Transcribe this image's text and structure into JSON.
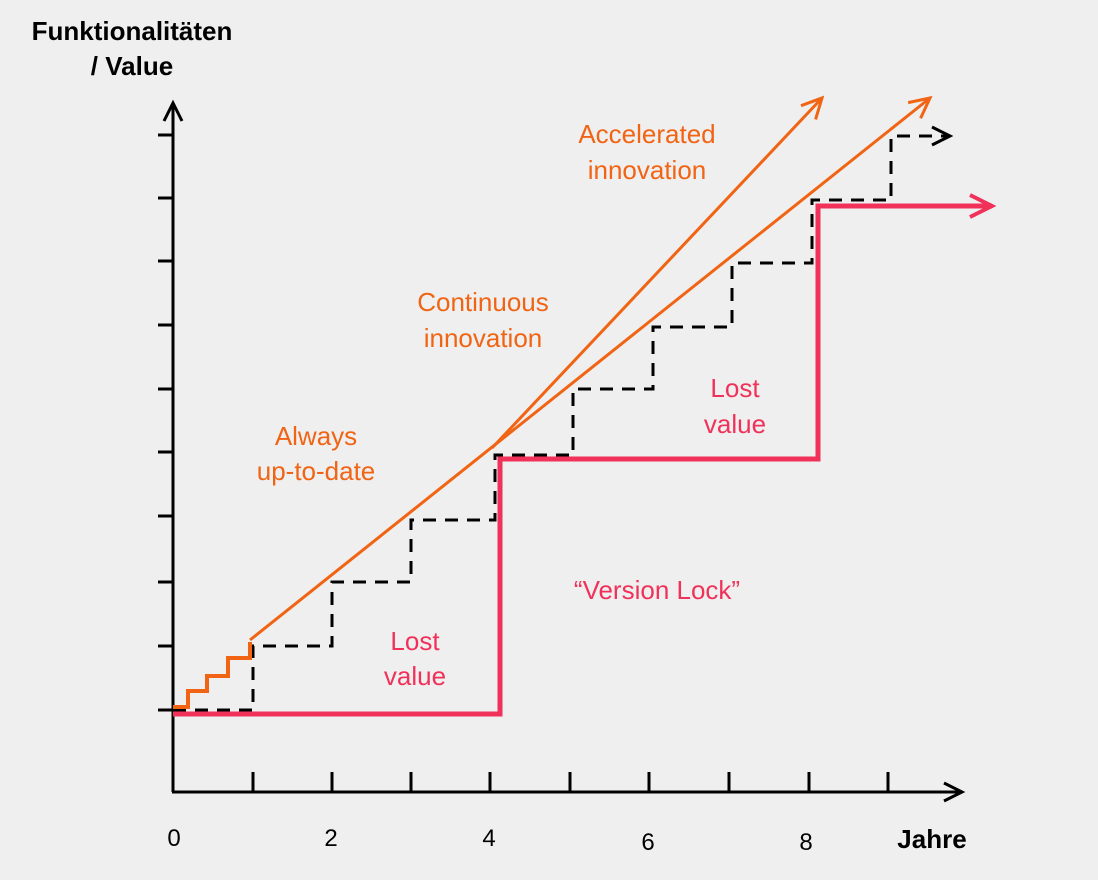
{
  "y_axis_label_line1": "Funktionalitäten",
  "y_axis_label_line2": "/ Value",
  "x_axis_label": "Jahre",
  "x_tick_labels": [
    "0",
    "2",
    "4",
    "6",
    "8"
  ],
  "annotations": {
    "accelerated": [
      "Accelerated",
      "innovation"
    ],
    "continuous": [
      "Continuous",
      "innovation"
    ],
    "always": [
      "Always",
      "up-to-date"
    ],
    "lost_value_upper": [
      "Lost",
      "value"
    ],
    "lost_value_lower": [
      "Lost",
      "value"
    ],
    "version_lock": "“Version Lock”"
  },
  "colors": {
    "orange": "#f06414",
    "pink": "#f0325a",
    "axis": "#000000",
    "background": "#efefef"
  }
}
